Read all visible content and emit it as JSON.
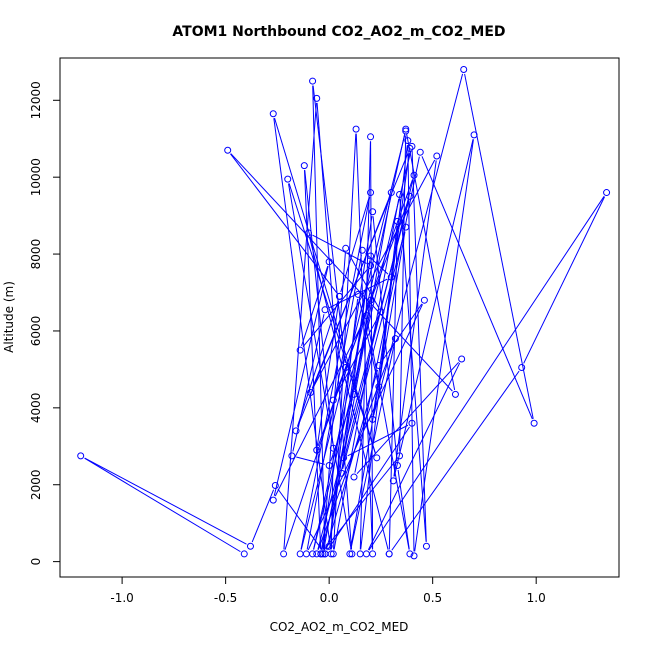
{
  "chart_data": {
    "type": "line",
    "title": "ATOM1 Northbound CO2_AO2_m_CO2_MED",
    "xlabel": "CO2_AO2_m_CO2_MED",
    "ylabel": "Altitude (m)",
    "xlim": [
      -1.3,
      1.4
    ],
    "ylim": [
      -400,
      13100
    ],
    "x_ticks": [
      -1.0,
      -0.5,
      0.0,
      0.5,
      1.0
    ],
    "x_tick_labels": [
      "-1.0",
      "-0.5",
      "0.0",
      "0.5",
      "1.0"
    ],
    "y_ticks": [
      0,
      2000,
      4000,
      6000,
      8000,
      10000,
      12000
    ],
    "y_tick_labels": [
      "0",
      "2000",
      "4000",
      "6000",
      "8000",
      "10000",
      "12000"
    ],
    "grid": false,
    "colors": {
      "series": "#0000ff",
      "axis": "#000000"
    },
    "series": [
      {
        "marker": "open-circle",
        "points": [
          [
            -0.41,
            200
          ],
          [
            -1.2,
            2750
          ],
          [
            -0.38,
            400
          ],
          [
            -0.26,
            1980
          ],
          [
            -0.02,
            200
          ],
          [
            -0.08,
            12500
          ],
          [
            0.08,
            5050
          ],
          [
            -0.22,
            200
          ],
          [
            -0.06,
            12050
          ],
          [
            0.11,
            200
          ],
          [
            -0.2,
            9950
          ],
          [
            0.23,
            2700
          ],
          [
            -0.27,
            11650
          ],
          [
            0.01,
            200
          ],
          [
            0.02,
            2950
          ],
          [
            -0.12,
            10300
          ],
          [
            -0.04,
            200
          ],
          [
            0.34,
            2750
          ],
          [
            0.37,
            11200
          ],
          [
            -0.14,
            200
          ],
          [
            0.2,
            9600
          ],
          [
            0.05,
            6900
          ],
          [
            -0.49,
            10700
          ],
          [
            0.61,
            4350
          ],
          [
            0.37,
            11250
          ],
          [
            -0.08,
            200
          ],
          [
            0.4,
            10800
          ],
          [
            0.47,
            400
          ],
          [
            0.34,
            9550
          ],
          [
            0.02,
            200
          ],
          [
            0.13,
            11250
          ],
          [
            0.21,
            200
          ],
          [
            0.2,
            11050
          ],
          [
            0.15,
            200
          ],
          [
            0.38,
            10950
          ],
          [
            0.41,
            150
          ],
          [
            0.7,
            11100
          ],
          [
            0.31,
            2100
          ],
          [
            0.52,
            10550
          ],
          [
            -0.09,
            4400
          ],
          [
            0.39,
            10750
          ],
          [
            0.21,
            3700
          ],
          [
            0.65,
            12800
          ],
          [
            0.99,
            3600
          ],
          [
            0.44,
            10650
          ],
          [
            0.12,
            2200
          ],
          [
            0.64,
            5270
          ],
          [
            0.18,
            200
          ],
          [
            1.34,
            9600
          ],
          [
            0.93,
            5050
          ],
          [
            0.29,
            200
          ],
          [
            0.33,
            8850
          ],
          [
            0.24,
            4550
          ],
          [
            0.14,
            6950
          ],
          [
            0.0,
            400
          ],
          [
            0.2,
            7950
          ],
          [
            0.06,
            2300
          ],
          [
            0.37,
            8700
          ],
          [
            0.1,
            200
          ],
          [
            0.32,
            5800
          ],
          [
            -0.06,
            200
          ],
          [
            0.39,
            9500
          ],
          [
            0.02,
            4200
          ],
          [
            0.25,
            6500
          ],
          [
            0.08,
            8150
          ],
          [
            -0.03,
            200
          ],
          [
            0.2,
            6800
          ],
          [
            0.12,
            4350
          ],
          [
            0.0,
            2500
          ],
          [
            -0.18,
            2750
          ],
          [
            -0.02,
            6550
          ],
          [
            0.3,
            7400
          ],
          [
            0.16,
            8100
          ],
          [
            -0.11,
            200
          ],
          [
            0.46,
            6800
          ],
          [
            0.24,
            5100
          ],
          [
            -0.02,
            200
          ],
          [
            0.4,
            3600
          ],
          [
            0.07,
            2700
          ],
          [
            0.3,
            9600
          ],
          [
            -0.16,
            3400
          ],
          [
            0.05,
            6900
          ],
          [
            -0.06,
            2900
          ],
          [
            0.41,
            10050
          ],
          [
            -0.04,
            200
          ],
          [
            0.21,
            9100
          ],
          [
            0.33,
            2500
          ],
          [
            0.39,
            200
          ],
          [
            0.18,
            6400
          ],
          [
            -0.27,
            1600
          ],
          [
            0.0,
            7800
          ],
          [
            -0.14,
            5500
          ],
          [
            0.2,
            7700
          ],
          [
            -0.1,
            8550
          ],
          [
            0.29,
            200
          ]
        ]
      }
    ]
  }
}
